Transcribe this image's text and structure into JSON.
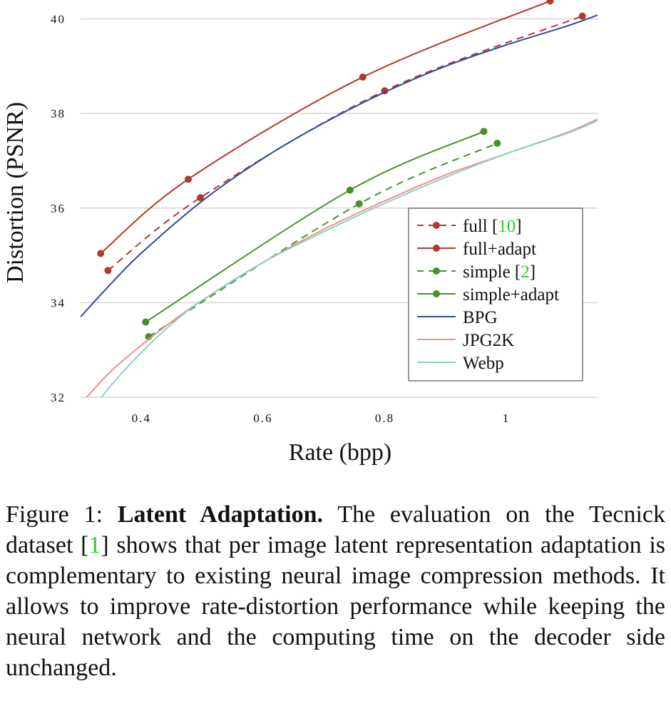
{
  "chart_data": {
    "type": "line",
    "xlabel": "Rate (bpp)",
    "ylabel": "Distortion (PSNR)",
    "xlim": [
      0.3,
      1.15
    ],
    "ylim": [
      32,
      40.4
    ],
    "xticks": [
      0.4,
      0.6,
      0.8,
      1.0
    ],
    "xtick_labels": [
      "0.4",
      "0.6",
      "0.8",
      "1"
    ],
    "yticks": [
      32,
      34,
      36,
      38,
      40
    ],
    "ytick_labels": [
      "32",
      "34",
      "36",
      "38",
      "40"
    ],
    "grid": "horizontal",
    "legend_position": "lower-right",
    "series": [
      {
        "name": "full [10]",
        "legend_main": "full [",
        "legend_ref": "10",
        "legend_end": "]",
        "color": "#b03a2e",
        "dashed": true,
        "markers": true,
        "x": [
          0.345,
          0.497,
          0.8,
          1.125
        ],
        "y": [
          34.68,
          36.22,
          38.48,
          40.06
        ]
      },
      {
        "name": "full+adapt",
        "color": "#b03a2e",
        "dashed": false,
        "markers": true,
        "x": [
          0.333,
          0.477,
          0.764,
          1.072
        ],
        "y": [
          35.04,
          36.61,
          38.77,
          40.38
        ]
      },
      {
        "name": "simple [2]",
        "legend_main": "simple [",
        "legend_ref": "2",
        "legend_end": "]",
        "color": "#4a8f2e",
        "dashed": true,
        "markers": true,
        "x": [
          0.412,
          0.758,
          0.985
        ],
        "y": [
          33.28,
          36.09,
          37.37
        ]
      },
      {
        "name": "simple+adapt",
        "color": "#4a8f2e",
        "dashed": false,
        "markers": true,
        "x": [
          0.407,
          0.743,
          0.963
        ],
        "y": [
          33.59,
          36.38,
          37.62
        ]
      },
      {
        "name": "BPG",
        "color": "#2e4a9b",
        "dashed": false,
        "markers": false,
        "x": [
          0.3,
          0.35,
          0.4,
          0.5,
          0.6,
          0.7,
          0.8,
          0.9,
          1.0,
          1.1,
          1.15
        ],
        "y": [
          33.7,
          34.4,
          35.05,
          36.15,
          37.05,
          37.8,
          38.45,
          39.0,
          39.45,
          39.85,
          40.08
        ]
      },
      {
        "name": "JPG2K",
        "color": "#e8928a",
        "dashed": false,
        "markers": false,
        "x": [
          0.31,
          0.35,
          0.4,
          0.45,
          0.5,
          0.6,
          0.7,
          0.8,
          0.9,
          1.0,
          1.1,
          1.15
        ],
        "y": [
          32.0,
          32.55,
          33.1,
          33.6,
          34.05,
          34.85,
          35.55,
          36.15,
          36.7,
          37.15,
          37.6,
          37.88
        ]
      },
      {
        "name": "Webp",
        "color": "#8fd0c8",
        "dashed": false,
        "markers": false,
        "x": [
          0.335,
          0.35,
          0.4,
          0.45,
          0.5,
          0.6,
          0.7,
          0.8,
          0.9,
          1.0,
          1.1,
          1.15
        ],
        "y": [
          32.0,
          32.25,
          32.95,
          33.55,
          34.05,
          34.85,
          35.5,
          36.1,
          36.65,
          37.15,
          37.58,
          37.85
        ]
      }
    ]
  },
  "caption": {
    "label": "Figure 1: ",
    "title": "Latent Adaptation.",
    "text_1": " The evaluation on the Tecnick dataset [",
    "ref": "1",
    "text_2": "] shows that per image latent representation adaptation is complementary to existing neural image compression methods. It allows to improve rate-distortion performance while keeping the neural network and the computing time on the decoder side unchanged."
  }
}
